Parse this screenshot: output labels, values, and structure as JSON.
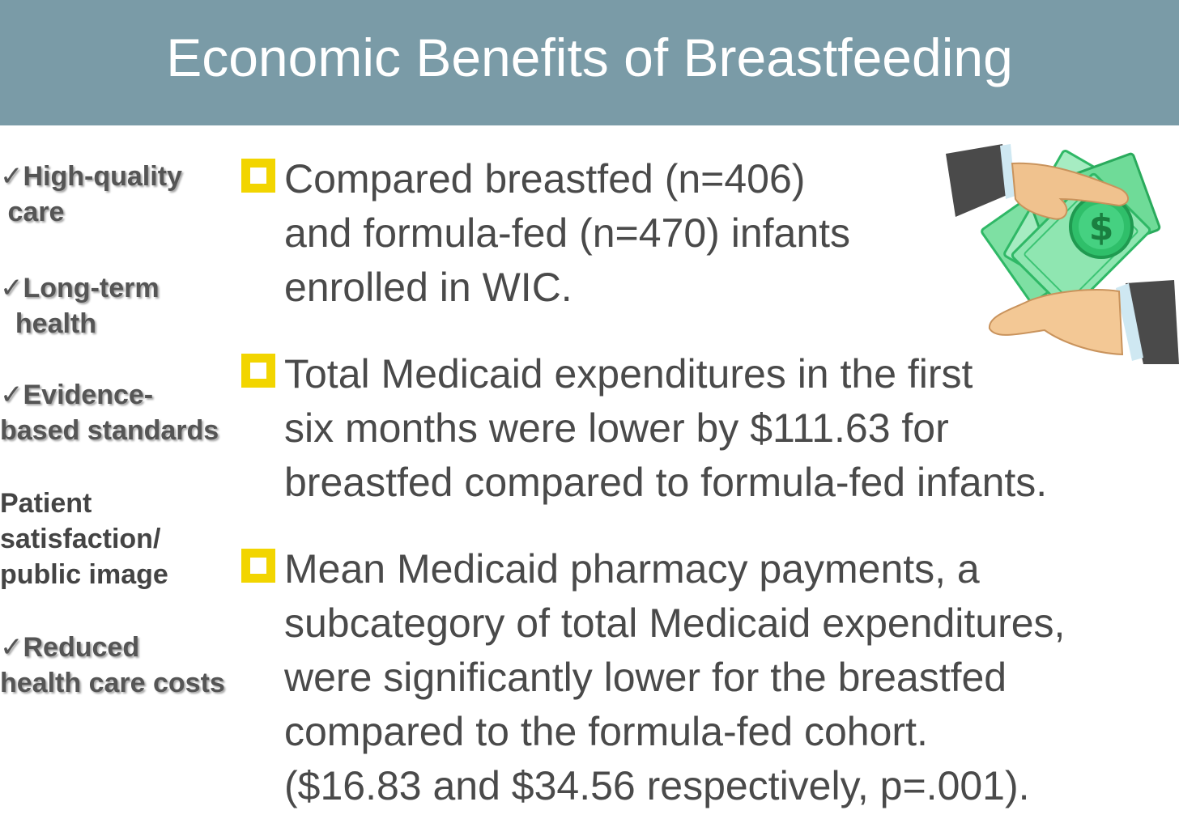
{
  "title": "Economic Benefits of Breastfeeding",
  "sidebar": {
    "items": [
      {
        "check": "✓",
        "lines": [
          "High-quality",
          " care"
        ]
      },
      {
        "check": "✓",
        "lines": [
          "Long-term",
          "  health"
        ]
      },
      {
        "check": "✓",
        "lines": [
          "Evidence-",
          "based standards"
        ]
      },
      {
        "check": "",
        "lines": [
          "Patient",
          "satisfaction/",
          "public image"
        ]
      },
      {
        "check": "✓",
        "lines": [
          "Reduced",
          "health care costs"
        ]
      }
    ]
  },
  "bullets": [
    {
      "lines": [
        "Compared breastfed (n=406)",
        "and formula-fed (n=470) infants",
        "enrolled in WIC."
      ]
    },
    {
      "lines": [
        "Total Medicaid expenditures in the first",
        "six months were lower by $111.63 for",
        "breastfed compared to formula-fed infants."
      ]
    },
    {
      "lines": [
        "Mean Medicaid pharmacy payments, a",
        "subcategory of total Medicaid expenditures,",
        "were significantly lower for the breastfed",
        "compared to the formula-fed cohort.",
        "($16.83 and $34.56 respectively, p=.001)."
      ]
    }
  ],
  "illustration": {
    "icon": "hands-exchanging-money-icon",
    "money_color": "#3fcf7a",
    "symbol": "$"
  }
}
